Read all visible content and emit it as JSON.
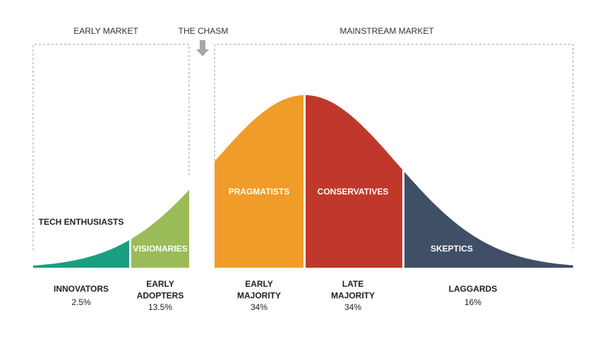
{
  "header": {
    "early_market": "EARLY MARKET",
    "chasm": "THE CHASM",
    "mainstream_market": "MAINSTREAM MARKET"
  },
  "segments": [
    {
      "label": "TECH ENTHUSIASTS",
      "group": [
        "INNOVATORS"
      ],
      "share": "2.5%"
    },
    {
      "label": "VISIONARIES",
      "group": [
        "EARLY",
        "ADOPTERS"
      ],
      "share": "13.5%"
    },
    {
      "label": "PRAGMATISTS",
      "group": [
        "EARLY",
        "MAJORITY"
      ],
      "share": "34%"
    },
    {
      "label": "CONSERVATIVES",
      "group": [
        "LATE",
        "MAJORITY"
      ],
      "share": "34%"
    },
    {
      "label": "SKEPTICS",
      "group": [
        "LAGGARDS"
      ],
      "share": "16%"
    }
  ]
}
